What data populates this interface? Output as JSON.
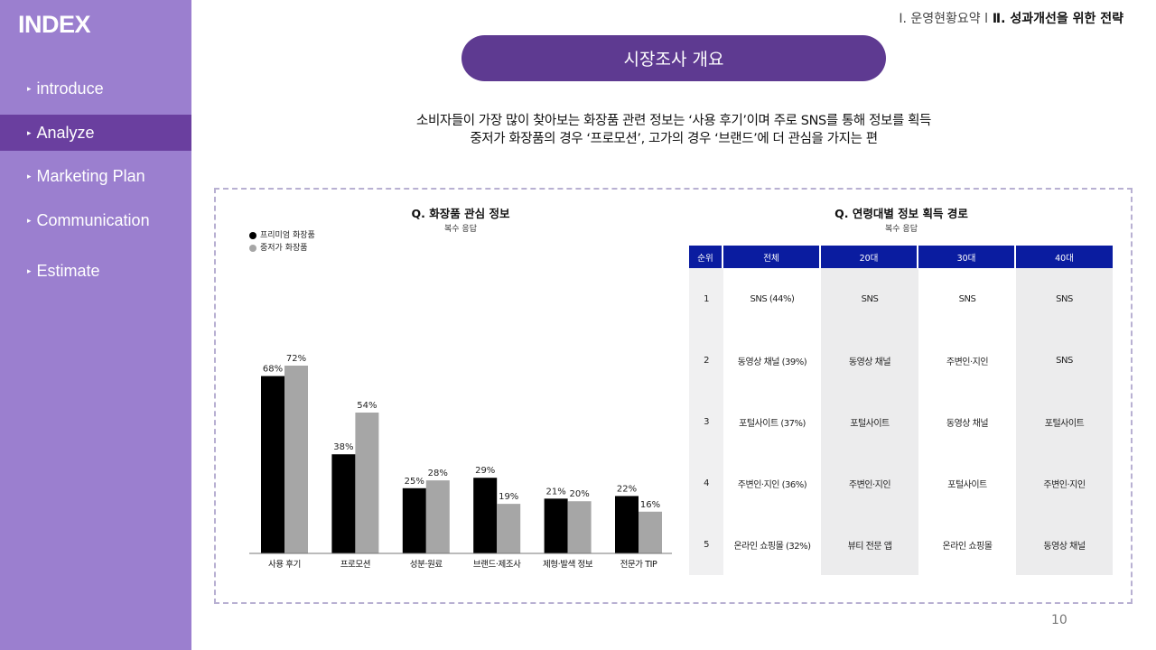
{
  "sidebar": {
    "title": "INDEX",
    "items": [
      {
        "label": "introduce"
      },
      {
        "label": "Analyze"
      },
      {
        "label": "Marketing Plan"
      },
      {
        "label": "Communication"
      },
      {
        "label": "Estimate"
      }
    ],
    "active_index": 1
  },
  "breadcrumb": {
    "part1": "Ⅰ. 운영현황요약 ",
    "sep": "l",
    "part2": " Ⅱ. 성과개선을 위한 전략"
  },
  "header": {
    "title": "시장조사 개요"
  },
  "summary": {
    "line1": "소비자들이 가장 많이 찾아보는 화장품 관련 정보는 ‘사용 후기’이며 주로 SNS를 통해 정보를 획득",
    "line2": "중저가 화장품의 경우 ‘프로모션’, 고가의 경우 ‘브랜드’에 더 관심을 가지는 편"
  },
  "chart_data": {
    "type": "bar",
    "title": "Q. 화장품 관심 정보",
    "subtitle": "복수 응답",
    "categories": [
      "사용 후기",
      "프로모션",
      "성분·원료",
      "브랜드·제조사",
      "제형·발색 정보",
      "전문가 TIP"
    ],
    "series": [
      {
        "name": "프리미엄 화장품",
        "color": "#000000",
        "values": [
          68,
          38,
          25,
          29,
          21,
          22
        ]
      },
      {
        "name": "중저가 화장품",
        "color": "#a6a6a6",
        "values": [
          72,
          54,
          28,
          19,
          20,
          16
        ]
      }
    ],
    "value_suffix": "%",
    "ylim": [
      0,
      90
    ],
    "grid": false,
    "legend_position": "top-left"
  },
  "table": {
    "title": "Q. 연령대별 정보 획득 경로",
    "subtitle": "복수 응답",
    "headers": [
      "순위",
      "전체",
      "20대",
      "30대",
      "40대"
    ],
    "rows": [
      [
        "1",
        "SNS (44%)",
        "SNS",
        "SNS",
        "SNS"
      ],
      [
        "2",
        "동영상 채널 (39%)",
        "동영상 채널",
        "주변인·지인",
        "SNS"
      ],
      [
        "3",
        "포털사이트 (37%)",
        "포털사이트",
        "동영상 채널",
        "포털사이트"
      ],
      [
        "4",
        "주변인·지인 (36%)",
        "주변인·지인",
        "포털사이트",
        "주변인·지인"
      ],
      [
        "5",
        "온라인 쇼핑몰 (32%)",
        "뷰티 전문 앱",
        "온라인 쇼핑몰",
        "동영상 채널"
      ]
    ],
    "header_color": "#0a1ca0"
  },
  "colors": {
    "sidebar_bg": "#9b7fcf",
    "sidebar_active": "#6a3f9f",
    "title_pill": "#5e3a91"
  },
  "page_number": "10"
}
